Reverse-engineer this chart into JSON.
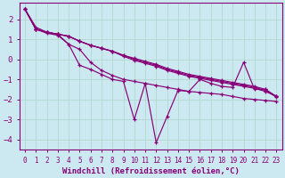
{
  "xlabel": "Windchill (Refroidissement éolien,°C)",
  "background_color": "#cce8f0",
  "grid_color": "#b0d8cc",
  "line_color": "#880077",
  "spine_color": "#880077",
  "xlim": [
    -0.5,
    23.5
  ],
  "ylim": [
    -4.5,
    2.8
  ],
  "yticks": [
    -4,
    -3,
    -2,
    -1,
    0,
    1,
    2
  ],
  "xticks": [
    0,
    1,
    2,
    3,
    4,
    5,
    6,
    7,
    8,
    9,
    10,
    11,
    12,
    13,
    14,
    15,
    16,
    17,
    18,
    19,
    20,
    21,
    22,
    23
  ],
  "series_band1": [
    2.5,
    1.5,
    1.35,
    1.25,
    1.15,
    0.9,
    0.7,
    0.55,
    0.4,
    0.2,
    0.05,
    -0.1,
    -0.25,
    -0.45,
    -0.6,
    -0.75,
    -0.85,
    -0.95,
    -1.05,
    -1.15,
    -1.25,
    -1.35,
    -1.5,
    -1.85
  ],
  "series_band2": [
    2.5,
    1.5,
    1.35,
    1.25,
    1.15,
    0.9,
    0.7,
    0.55,
    0.4,
    0.2,
    0.0,
    -0.15,
    -0.3,
    -0.5,
    -0.65,
    -0.8,
    -0.9,
    -1.0,
    -1.1,
    -1.2,
    -1.3,
    -1.4,
    -1.55,
    -1.85
  ],
  "series_band3": [
    2.5,
    1.5,
    1.35,
    1.25,
    1.15,
    0.9,
    0.7,
    0.55,
    0.4,
    0.15,
    -0.05,
    -0.2,
    -0.35,
    -0.55,
    -0.7,
    -0.85,
    -0.95,
    -1.05,
    -1.15,
    -1.25,
    -1.35,
    -1.45,
    -1.6,
    -1.85
  ],
  "series_jagged": [
    2.5,
    1.6,
    1.35,
    1.25,
    0.75,
    0.5,
    -0.15,
    -0.55,
    -0.8,
    -1.0,
    -1.1,
    -1.2,
    -1.3,
    -1.4,
    -1.5,
    -1.6,
    -1.65,
    -1.7,
    -1.75,
    -1.85,
    -1.95,
    -2.0,
    -2.05,
    -2.1
  ],
  "series_erratic": [
    2.5,
    1.5,
    1.3,
    1.2,
    0.75,
    -0.3,
    -0.5,
    -0.75,
    -1.0,
    -1.1,
    -3.0,
    -1.2,
    -4.15,
    -2.85,
    -1.55,
    -1.6,
    -1.0,
    -1.2,
    -1.35,
    -1.4,
    -0.15,
    -1.5,
    -1.5,
    -1.9
  ],
  "xlabel_fontsize": 6.5,
  "tick_fontsize": 6.0,
  "linewidth": 0.85,
  "markersize": 3.5
}
